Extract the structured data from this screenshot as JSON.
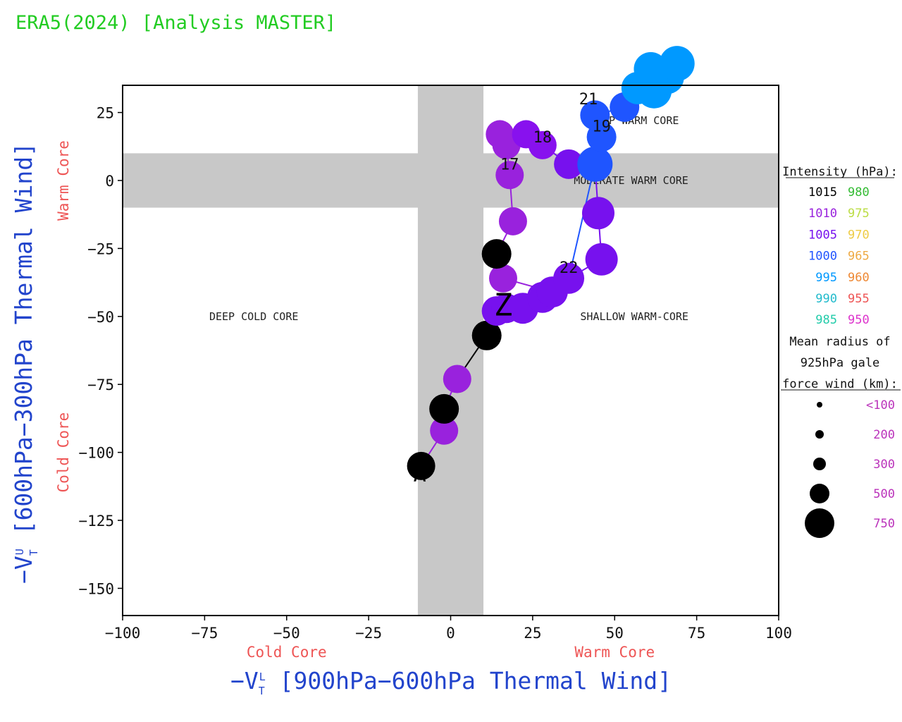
{
  "title": "ERA5(2024) [Analysis MASTER]",
  "chart_data": {
    "type": "scatter",
    "xlabel_main": "−V",
    "xlabel_sub": "T",
    "xlabel_sup": "L",
    "xlabel_rest": " [900hPa−600hPa Thermal Wind]",
    "ylabel_main": "−V",
    "ylabel_sub": "T",
    "ylabel_sup": "U",
    "ylabel_rest": " [600hPa−300hPa Thermal Wind]",
    "x_core_cold": "Cold Core",
    "x_core_warm": "Warm Core",
    "y_core_cold": "Cold Core",
    "y_core_warm": "Warm Core",
    "xlim": [
      -100,
      100
    ],
    "ylim": [
      -160,
      35
    ],
    "xticks": [
      -100,
      -75,
      -50,
      -25,
      0,
      25,
      50,
      75,
      100
    ],
    "xtick_labels": [
      "−100",
      "−75",
      "−50",
      "−25",
      "0",
      "25",
      "50",
      "75",
      "100"
    ],
    "yticks": [
      25,
      0,
      -25,
      -50,
      -75,
      -100,
      -125,
      -150
    ],
    "ytick_labels": [
      "25",
      "0",
      "−25",
      "−50",
      "−75",
      "−100",
      "−125",
      "−150"
    ],
    "gray_bands": {
      "x_range": [
        -10,
        10
      ],
      "y_range": [
        -10,
        10
      ],
      "color": "#c8c8c8"
    },
    "regions": [
      {
        "text": "DEEP WARM CORE",
        "x": 56,
        "y": 22
      },
      {
        "text": "MODERATE WARM CORE",
        "x": 55,
        "y": 0
      },
      {
        "text": "DEEP COLD CORE",
        "x": -60,
        "y": -50
      },
      {
        "text": "SHALLOW WARM-CORE",
        "x": 56,
        "y": -50
      }
    ],
    "marker_start": "A",
    "marker_end": "Z",
    "track": [
      {
        "x": -9,
        "y": -105,
        "r": 20,
        "color": "#000000"
      },
      {
        "x": -2,
        "y": -92,
        "r": 20,
        "color": "#9922dd"
      },
      {
        "x": -2,
        "y": -84,
        "r": 21,
        "color": "#000000"
      },
      {
        "x": 2,
        "y": -73,
        "r": 20,
        "color": "#9922dd"
      },
      {
        "x": 11,
        "y": -57,
        "r": 21,
        "color": "#000000"
      },
      {
        "x": 14,
        "y": -48,
        "r": 21,
        "color": "#7711ee"
      },
      {
        "x": 17,
        "y": -47,
        "r": 21,
        "color": "#7711ee"
      },
      {
        "x": 22,
        "y": -47,
        "r": 22,
        "color": "#7711ee"
      },
      {
        "x": 28,
        "y": -43,
        "r": 22,
        "color": "#7711ee"
      },
      {
        "x": 31,
        "y": -41,
        "r": 22,
        "color": "#7711ee"
      },
      {
        "x": 16,
        "y": -36,
        "r": 20,
        "color": "#9922dd"
      },
      {
        "x": 14,
        "y": -27,
        "r": 21,
        "color": "#000000"
      },
      {
        "x": 19,
        "y": -15,
        "r": 20,
        "color": "#9922dd"
      },
      {
        "x": 18,
        "y": 2,
        "r": 20,
        "color": "#9922dd"
      },
      {
        "x": 17,
        "y": 13,
        "r": 20,
        "color": "#9922dd"
      },
      {
        "x": 15,
        "y": 17,
        "r": 20,
        "color": "#9922dd"
      },
      {
        "x": 23,
        "y": 17,
        "r": 20,
        "color": "#8811ee"
      },
      {
        "x": 28,
        "y": 13,
        "r": 20,
        "color": "#8811ee"
      },
      {
        "x": 36,
        "y": 6,
        "r": 21,
        "color": "#7711ee"
      },
      {
        "x": 44,
        "y": 6,
        "r": 21,
        "color": "#7711ee"
      },
      {
        "x": 45,
        "y": -12,
        "r": 23,
        "color": "#7711ee"
      },
      {
        "x": 46,
        "y": -29,
        "r": 23,
        "color": "#7711ee"
      },
      {
        "x": 36,
        "y": -36,
        "r": 22,
        "color": "#7711ee"
      },
      {
        "x": 44,
        "y": 6,
        "r": 25,
        "color": "#1f55ff"
      },
      {
        "x": 46,
        "y": 16,
        "r": 21,
        "color": "#1f55ff"
      },
      {
        "x": 44,
        "y": 24,
        "r": 21,
        "color": "#1f55ff"
      },
      {
        "x": 53,
        "y": 27,
        "r": 21,
        "color": "#1f55ff"
      },
      {
        "x": 57,
        "y": 34,
        "r": 23,
        "color": "#0099ff"
      },
      {
        "x": 62,
        "y": 33,
        "r": 25,
        "color": "#0099ff"
      },
      {
        "x": 61,
        "y": 41,
        "r": 24,
        "color": "#0099ff"
      },
      {
        "x": 66,
        "y": 38,
        "r": 24,
        "color": "#0099ff"
      },
      {
        "x": 69,
        "y": 43,
        "r": 25,
        "color": "#0099ff"
      }
    ],
    "day_labels": [
      {
        "text": "17",
        "x": 18,
        "y": 4
      },
      {
        "text": "18",
        "x": 28,
        "y": 14
      },
      {
        "text": "19",
        "x": 46,
        "y": 18
      },
      {
        "text": "21",
        "x": 42,
        "y": 28
      },
      {
        "text": "22",
        "x": 36,
        "y": -34
      }
    ]
  },
  "legend": {
    "intensity_title": "Intensity (hPa):",
    "intensity_rows": [
      {
        "left": "1015",
        "left_color": "#000000",
        "right": "980",
        "right_color": "#33bb33"
      },
      {
        "left": "1010",
        "left_color": "#9922dd",
        "right": "975",
        "right_color": "#bbdd44"
      },
      {
        "left": "1005",
        "left_color": "#7711ee",
        "right": "970",
        "right_color": "#eecc44"
      },
      {
        "left": "1000",
        "left_color": "#2255ff",
        "right": "965",
        "right_color": "#eeaa44"
      },
      {
        "left": "995",
        "left_color": "#0099ff",
        "right": "960",
        "right_color": "#ee8833"
      },
      {
        "left": "990",
        "left_color": "#22bbcc",
        "right": "955",
        "right_color": "#ee5555"
      },
      {
        "left": "985",
        "left_color": "#22ccaa",
        "right": "950",
        "right_color": "#dd33cc"
      }
    ],
    "radius_title_lines": [
      "Mean radius of",
      "925hPa gale",
      "force wind (km):"
    ],
    "radius_rows": [
      {
        "label": "<100",
        "r": 4
      },
      {
        "label": "200",
        "r": 6
      },
      {
        "label": "300",
        "r": 9
      },
      {
        "label": "500",
        "r": 14
      },
      {
        "label": "750",
        "r": 21
      }
    ],
    "radius_label_color": "#bb33bb"
  }
}
